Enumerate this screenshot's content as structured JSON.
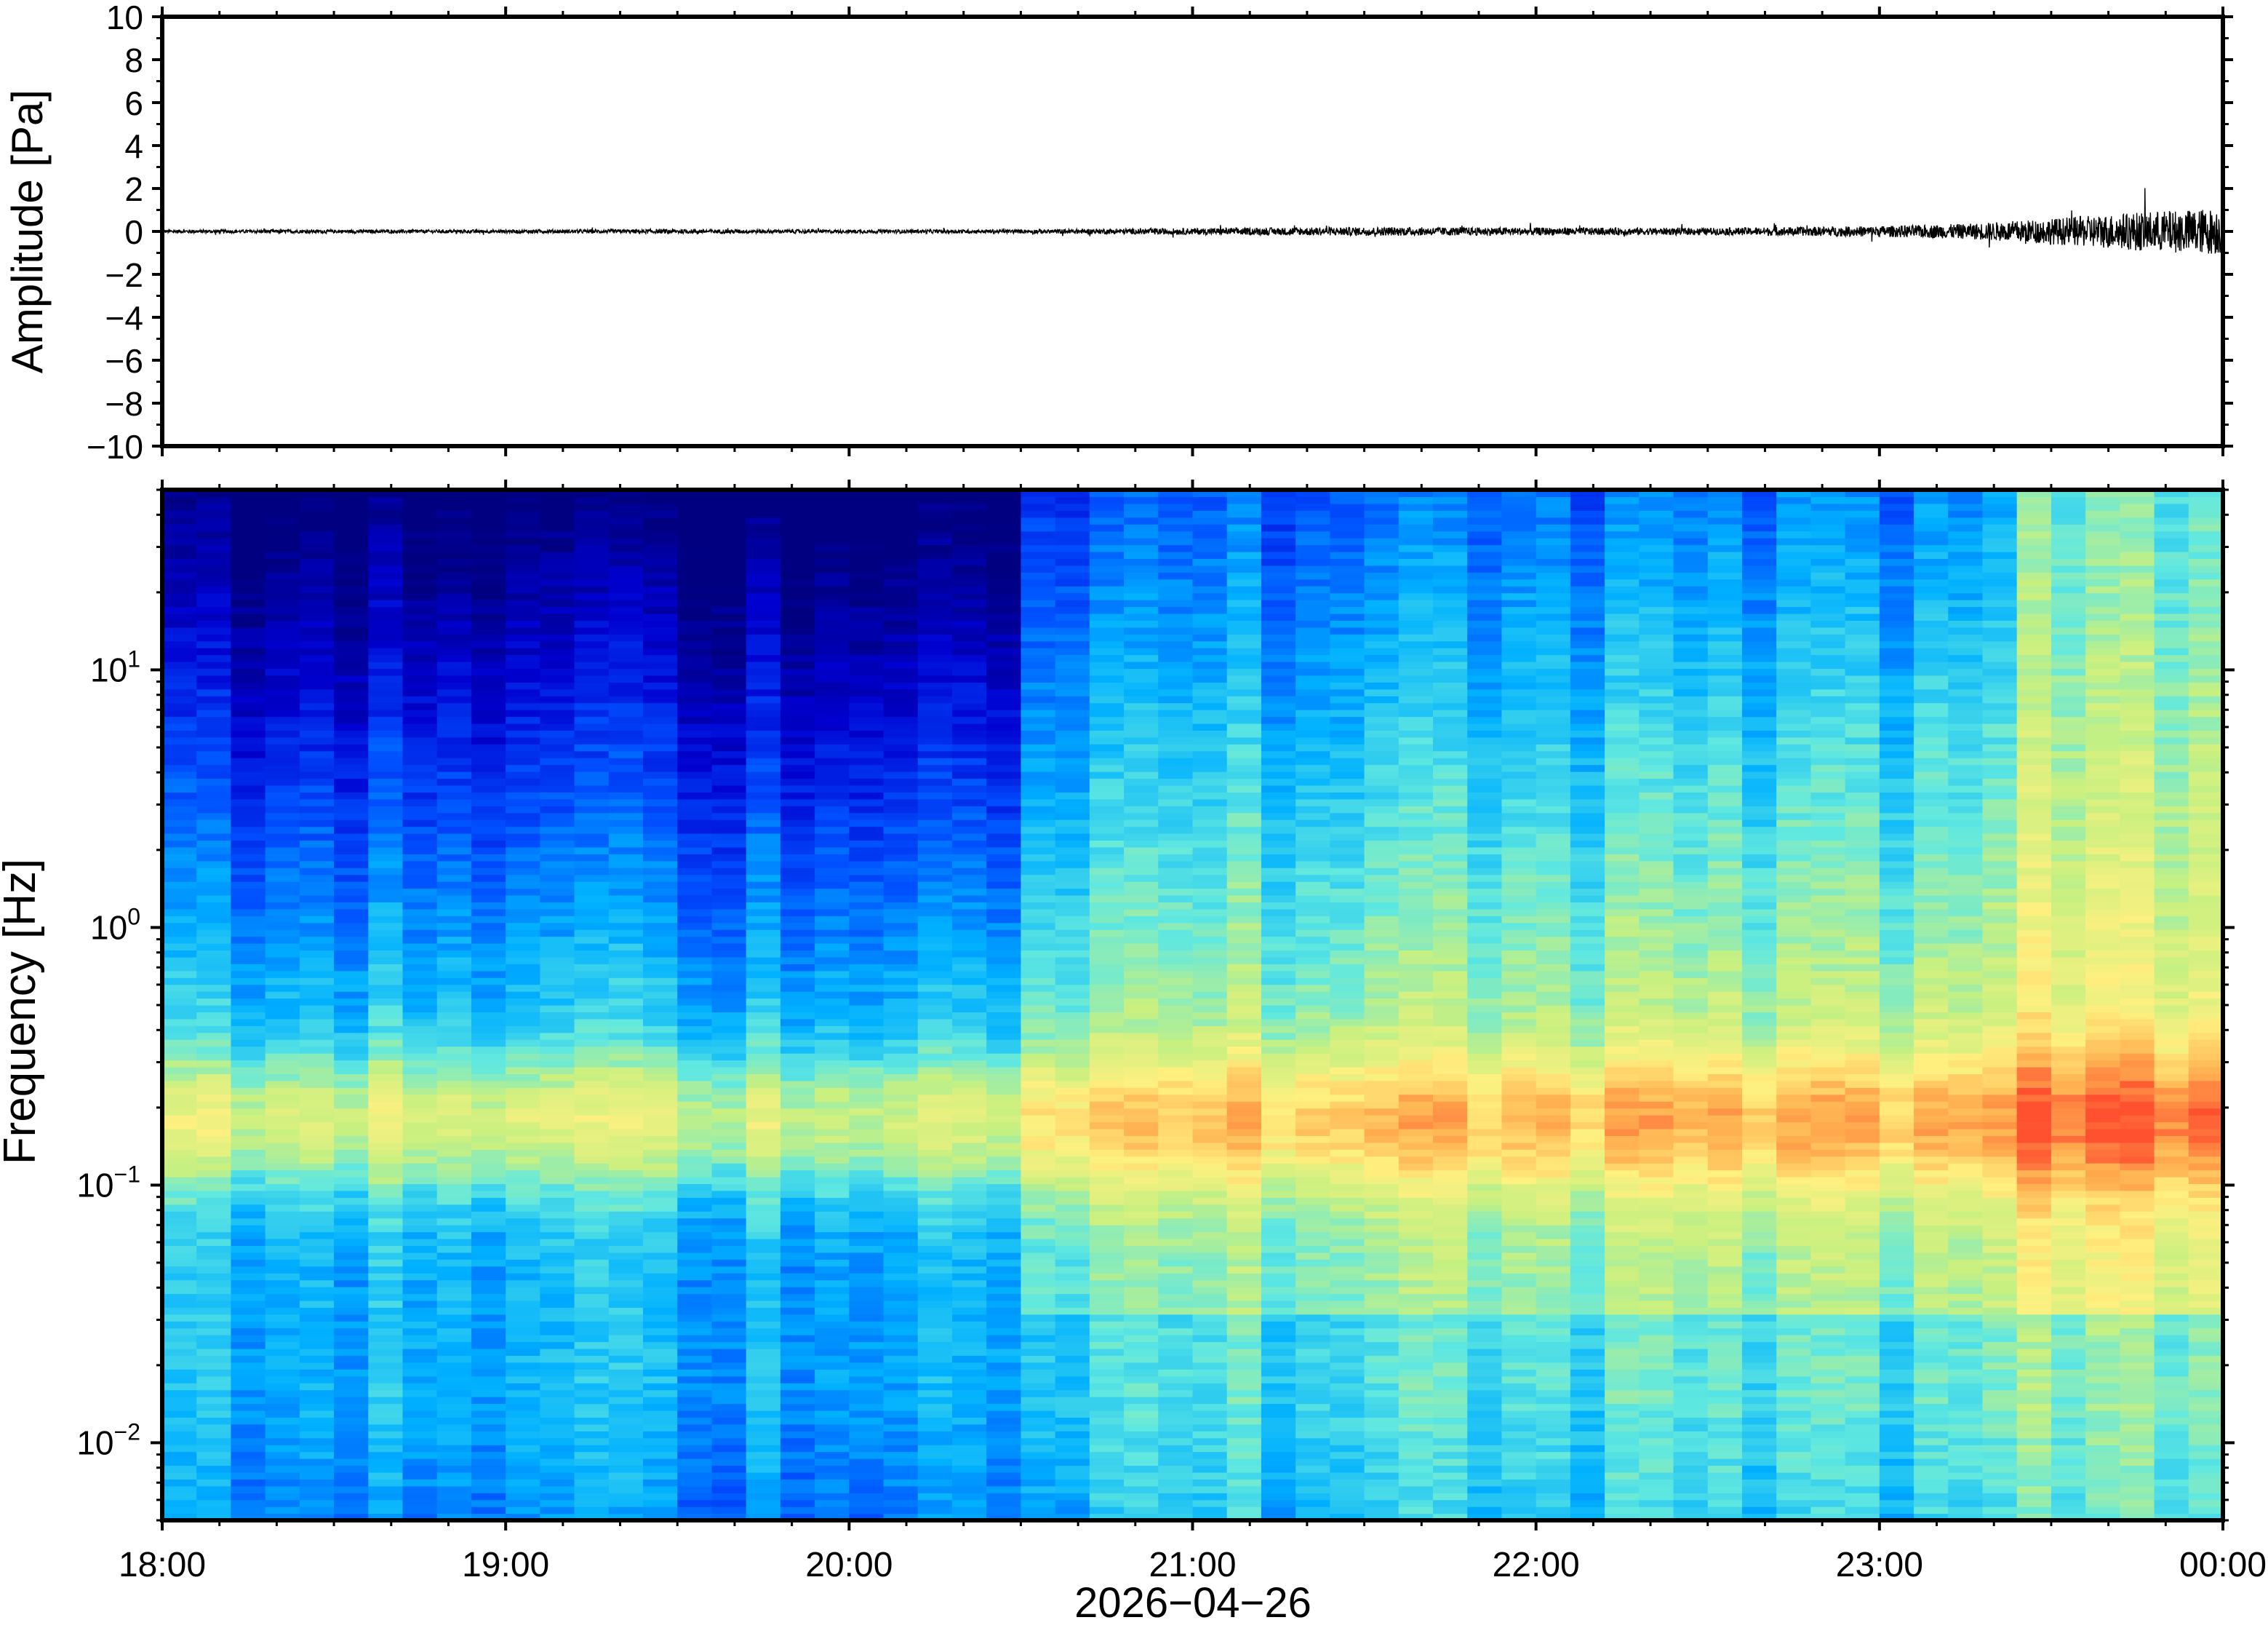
{
  "chart_data": [
    {
      "type": "line",
      "ylabel": "Amplitude [Pa]",
      "ylim": [
        -10,
        10
      ],
      "yticks": [
        "10",
        "8",
        "6",
        "4",
        "2",
        "0",
        "−2",
        "−4",
        "−6",
        "−8",
        "−10"
      ],
      "ytick_values": [
        10,
        8,
        6,
        4,
        2,
        0,
        -2,
        -4,
        -6,
        -8,
        -10
      ],
      "xlim": [
        "18:00",
        "00:00"
      ],
      "series": [
        {
          "t_hours": [
            0.0,
            0.5,
            1.0,
            1.5,
            2.0,
            2.5,
            3.0,
            3.5,
            4.0,
            4.5,
            5.0,
            5.25,
            5.5,
            5.75,
            6.0
          ],
          "envelope_pa": [
            0.08,
            0.08,
            0.08,
            0.1,
            0.08,
            0.09,
            0.15,
            0.2,
            0.18,
            0.16,
            0.25,
            0.35,
            0.6,
            0.9,
            1.1
          ]
        }
      ],
      "grid": false
    },
    {
      "type": "heatmap",
      "ylabel": "Frequency [Hz]",
      "yscale": "log",
      "ylim": [
        0.005,
        50
      ],
      "yticks": [
        {
          "base": "10",
          "exp": "−2",
          "value": 0.01
        },
        {
          "base": "10",
          "exp": "−1",
          "value": 0.1
        },
        {
          "base": "10",
          "exp": "0",
          "value": 1
        },
        {
          "base": "10",
          "exp": "1",
          "value": 10
        }
      ],
      "xlabel": "2026−04−26",
      "xticks": [
        "18:00",
        "19:00",
        "20:00",
        "21:00",
        "22:00",
        "23:00",
        "00:00"
      ],
      "colormap": [
        "#000080",
        "#0000d0",
        "#0050ff",
        "#00b0ff",
        "#60e8e0",
        "#c8f080",
        "#fff080",
        "#ffb050",
        "#ff5030"
      ],
      "time_segments": 60,
      "grid": false
    }
  ]
}
